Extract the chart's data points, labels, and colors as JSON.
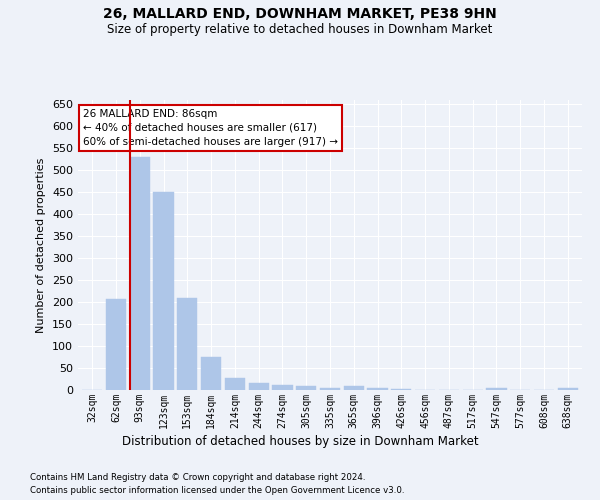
{
  "title": "26, MALLARD END, DOWNHAM MARKET, PE38 9HN",
  "subtitle": "Size of property relative to detached houses in Downham Market",
  "xlabel": "Distribution of detached houses by size in Downham Market",
  "ylabel": "Number of detached properties",
  "categories": [
    "32sqm",
    "62sqm",
    "93sqm",
    "123sqm",
    "153sqm",
    "184sqm",
    "214sqm",
    "244sqm",
    "274sqm",
    "305sqm",
    "335sqm",
    "365sqm",
    "396sqm",
    "426sqm",
    "456sqm",
    "487sqm",
    "517sqm",
    "547sqm",
    "577sqm",
    "608sqm",
    "638sqm"
  ],
  "values": [
    0,
    207,
    530,
    450,
    210,
    75,
    27,
    17,
    12,
    10,
    5,
    8,
    5,
    3,
    1,
    1,
    1,
    5,
    1,
    1,
    5
  ],
  "bar_color": "#aec6e8",
  "bar_edgecolor": "#aec6e8",
  "redline_index": 2,
  "annotation_line1": "26 MALLARD END: 86sqm",
  "annotation_line2": "← 40% of detached houses are smaller (617)",
  "annotation_line3": "60% of semi-detached houses are larger (917) →",
  "annotation_box_color": "#ffffff",
  "annotation_box_edgecolor": "#cc0000",
  "ylim": [
    0,
    660
  ],
  "yticks": [
    0,
    50,
    100,
    150,
    200,
    250,
    300,
    350,
    400,
    450,
    500,
    550,
    600,
    650
  ],
  "bg_color": "#eef2f9",
  "grid_color": "#ffffff",
  "footer1": "Contains HM Land Registry data © Crown copyright and database right 2024.",
  "footer2": "Contains public sector information licensed under the Open Government Licence v3.0."
}
